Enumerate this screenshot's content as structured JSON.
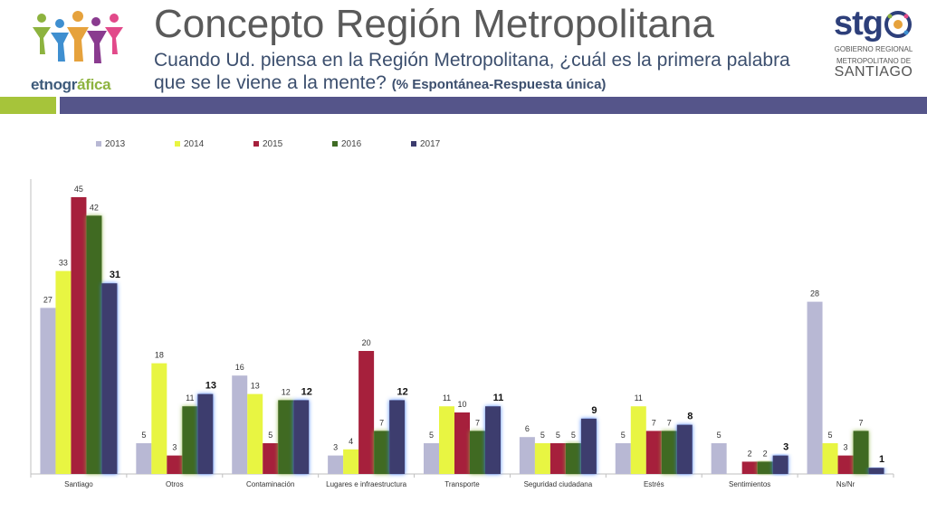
{
  "header": {
    "title": "Concepto Región Metropolitana",
    "subtitle": "Cuando Ud. piensa en la Región Metropolitana, ¿cuál es la primera palabra que se le viene a la mente?",
    "subtitle_note": "(% Espontánea-Respuesta única)",
    "logo_left_text_a": "etnogr",
    "logo_left_text_b": "áfica",
    "logo_right_mark": "stg",
    "logo_right_line1": "GOBIERNO REGIONAL",
    "logo_right_line2": "METROPOLITANO DE",
    "logo_right_line3": "SANTIAGO"
  },
  "colors": {
    "header_bar": "#55558a",
    "header_accent": "#a6c43a",
    "logo_blue": "#2d3f7a"
  },
  "chart_data": {
    "type": "bar",
    "categories": [
      "Santiago",
      "Otros",
      "Contaminación",
      "Lugares e infraestructura",
      "Transporte",
      "Seguridad ciudadana",
      "Estrés",
      "Sentimientos",
      "Ns/Nr"
    ],
    "series": [
      {
        "name": "2013",
        "color": "#b8b8d4",
        "values": [
          27,
          5,
          16,
          3,
          5,
          6,
          5,
          5,
          28
        ],
        "labels": [
          "27",
          "5",
          "16",
          "3",
          "5",
          "6",
          "5",
          "5",
          "28"
        ]
      },
      {
        "name": "2014",
        "color": "#e8f542",
        "values": [
          33,
          18,
          13,
          4,
          11,
          5,
          11,
          0,
          5
        ],
        "labels": [
          "33",
          "18",
          "13",
          "4",
          "11",
          "5",
          "11",
          "",
          "5"
        ]
      },
      {
        "name": "2015",
        "color": "#a6203c",
        "values": [
          45,
          3,
          5,
          20,
          10,
          5,
          7,
          2,
          3
        ],
        "labels": [
          "45",
          "3",
          "5",
          "20",
          "10",
          "5",
          "7",
          "2",
          "3"
        ]
      },
      {
        "name": "2016",
        "color": "#3f6b24",
        "values": [
          42,
          11,
          12,
          7,
          7,
          5,
          7,
          2,
          7
        ],
        "labels": [
          "42",
          "11",
          "12",
          "7",
          "7",
          "5",
          "7",
          "2",
          "7"
        ]
      },
      {
        "name": "2017",
        "color": "#3c3c6e",
        "values": [
          31,
          13,
          12,
          12,
          11,
          9,
          8,
          3,
          1
        ],
        "labels": [
          "31",
          "13",
          "12",
          "12",
          "11",
          "9",
          "8",
          "3",
          "1"
        ]
      }
    ],
    "ylim": [
      0,
      45
    ],
    "legend_position": "top-left",
    "grid": false
  }
}
